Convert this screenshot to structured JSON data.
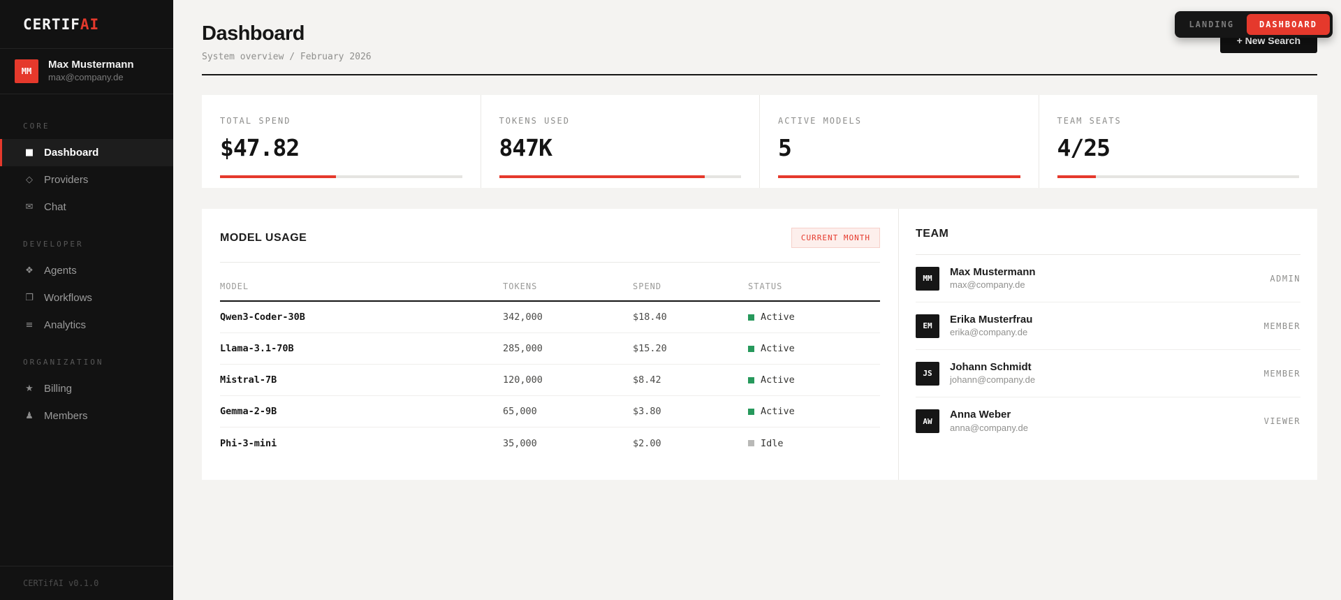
{
  "colors": {
    "accent": "#e5392c",
    "status_active": "#27995c",
    "status_idle": "#b9b9b7"
  },
  "app": {
    "logo_primary": "CERTIF",
    "logo_accent": "AI",
    "version": "CERTifAI v0.1.0"
  },
  "user": {
    "initials": "MM",
    "name": "Max Mustermann",
    "email": "max@company.de"
  },
  "topbar": {
    "landing_label": "LANDING",
    "dashboard_label": "DASHBOARD",
    "new_search_label": "+ New Search"
  },
  "header": {
    "title": "Dashboard",
    "breadcrumb": "System overview / February 2026"
  },
  "sidebar": {
    "sections": [
      {
        "label": "CORE",
        "items": [
          {
            "icon": "■",
            "label": "Dashboard",
            "active": true
          },
          {
            "icon": "◇",
            "label": "Providers",
            "active": false
          },
          {
            "icon": "✉",
            "label": "Chat",
            "active": false
          }
        ]
      },
      {
        "label": "DEVELOPER",
        "items": [
          {
            "icon": "❖",
            "label": "Agents",
            "active": false
          },
          {
            "icon": "❐",
            "label": "Workflows",
            "active": false
          },
          {
            "icon": "≡",
            "label": "Analytics",
            "active": false
          }
        ]
      },
      {
        "label": "ORGANIZATION",
        "items": [
          {
            "icon": "★",
            "label": "Billing",
            "active": false
          },
          {
            "icon": "♟",
            "label": "Members",
            "active": false
          }
        ]
      }
    ]
  },
  "stats": [
    {
      "label": "TOTAL SPEND",
      "value": "$47.82",
      "progress": 48
    },
    {
      "label": "TOKENS USED",
      "value": "847K",
      "progress": 85
    },
    {
      "label": "ACTIVE MODELS",
      "value": "5",
      "progress": 100
    },
    {
      "label": "TEAM SEATS",
      "value": "4/25",
      "progress": 16
    }
  ],
  "model_usage": {
    "title": "MODEL USAGE",
    "badge": "CURRENT MONTH",
    "columns": [
      "MODEL",
      "TOKENS",
      "SPEND",
      "STATUS"
    ],
    "rows": [
      {
        "model": "Qwen3-Coder-30B",
        "tokens": "342,000",
        "spend": "$18.40",
        "status": "Active",
        "status_color": "#27995c"
      },
      {
        "model": "Llama-3.1-70B",
        "tokens": "285,000",
        "spend": "$15.20",
        "status": "Active",
        "status_color": "#27995c"
      },
      {
        "model": "Mistral-7B",
        "tokens": "120,000",
        "spend": "$8.42",
        "status": "Active",
        "status_color": "#27995c"
      },
      {
        "model": "Gemma-2-9B",
        "tokens": "65,000",
        "spend": "$3.80",
        "status": "Active",
        "status_color": "#27995c"
      },
      {
        "model": "Phi-3-mini",
        "tokens": "35,000",
        "spend": "$2.00",
        "status": "Idle",
        "status_color": "#b9b9b7"
      }
    ]
  },
  "team": {
    "title": "TEAM",
    "members": [
      {
        "initials": "MM",
        "name": "Max Mustermann",
        "email": "max@company.de",
        "role": "ADMIN"
      },
      {
        "initials": "EM",
        "name": "Erika Musterfrau",
        "email": "erika@company.de",
        "role": "MEMBER"
      },
      {
        "initials": "JS",
        "name": "Johann Schmidt",
        "email": "johann@company.de",
        "role": "MEMBER"
      },
      {
        "initials": "AW",
        "name": "Anna Weber",
        "email": "anna@company.de",
        "role": "VIEWER"
      }
    ]
  }
}
